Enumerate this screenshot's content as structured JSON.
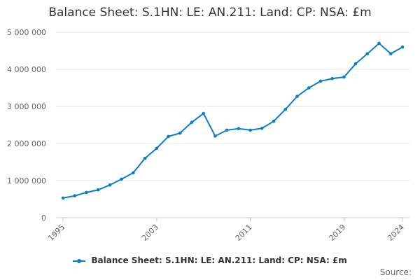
{
  "chart_data": {
    "type": "line",
    "title": "Balance Sheet: S.1HN: LE: AN.211: Land: CP: NSA: £m",
    "xlabel": "",
    "ylabel": "",
    "x": [
      1995,
      1996,
      1997,
      1998,
      1999,
      2000,
      2001,
      2002,
      2003,
      2004,
      2005,
      2006,
      2007,
      2008,
      2009,
      2010,
      2011,
      2012,
      2013,
      2014,
      2015,
      2016,
      2017,
      2018,
      2019,
      2020,
      2021,
      2022,
      2023,
      2024
    ],
    "series": [
      {
        "name": "Balance Sheet: S.1HN: LE: AN.211: Land: CP: NSA: £m",
        "color": "#0a7fc7",
        "values": [
          530000,
          590000,
          680000,
          750000,
          880000,
          1040000,
          1210000,
          1600000,
          1870000,
          2190000,
          2280000,
          2570000,
          2810000,
          2200000,
          2360000,
          2400000,
          2360000,
          2410000,
          2600000,
          2920000,
          3270000,
          3500000,
          3680000,
          3750000,
          3790000,
          4150000,
          4420000,
          4700000,
          4420000,
          4600000
        ]
      }
    ],
    "ylim": [
      0,
      5000000
    ],
    "yticks": [
      0,
      1000000,
      2000000,
      3000000,
      4000000,
      5000000
    ],
    "ytick_labels": [
      "0",
      "1 000 000",
      "2 000 000",
      "3 000 000",
      "4 000 000",
      "5 000 000"
    ],
    "xticks": [
      1995,
      2003,
      2011,
      2019,
      2024
    ],
    "xtick_labels": [
      "1995",
      "2003",
      "2011",
      "2019",
      "2024"
    ],
    "grid": true,
    "legend": "bottom-center"
  },
  "source_label": "Source:"
}
